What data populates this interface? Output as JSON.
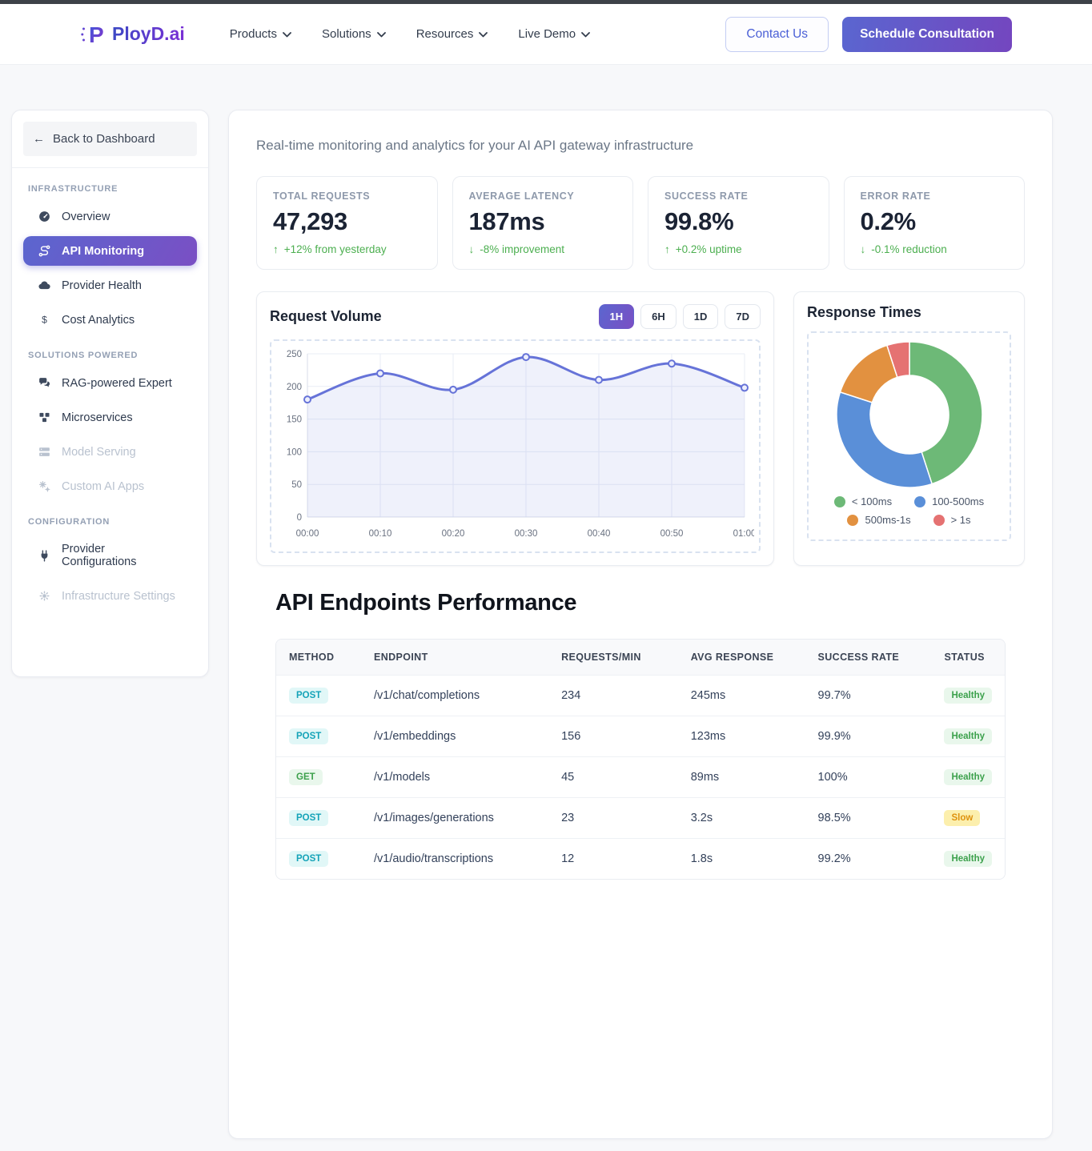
{
  "brand": {
    "name": "PloyD.ai"
  },
  "nav": {
    "items": [
      {
        "label": "Products"
      },
      {
        "label": "Solutions"
      },
      {
        "label": "Resources"
      },
      {
        "label": "Live Demo"
      }
    ]
  },
  "header": {
    "contact_label": "Contact Us",
    "schedule_label": "Schedule Consultation"
  },
  "sidebar": {
    "back_label": "Back to Dashboard",
    "sections": [
      {
        "label": "INFRASTRUCTURE",
        "items": [
          {
            "label": "Overview",
            "icon": "gauge-icon"
          },
          {
            "label": "API Monitoring",
            "icon": "route-icon",
            "active": true
          },
          {
            "label": "Provider Health",
            "icon": "cloud-icon"
          },
          {
            "label": "Cost Analytics",
            "icon": "dollar-icon"
          }
        ]
      },
      {
        "label": "SOLUTIONS POWERED",
        "items": [
          {
            "label": "RAG-powered Expert",
            "icon": "chat-icon"
          },
          {
            "label": "Microservices",
            "icon": "cubes-icon"
          },
          {
            "label": "Model Serving",
            "icon": "server-icon",
            "disabled": true
          },
          {
            "label": "Custom AI Apps",
            "icon": "gears-icon",
            "disabled": true
          }
        ]
      },
      {
        "label": "CONFIGURATION",
        "items": [
          {
            "label": "Provider Configurations",
            "icon": "plug-icon"
          },
          {
            "label": "Infrastructure Settings",
            "icon": "gear-icon",
            "disabled": true
          }
        ]
      }
    ]
  },
  "main": {
    "subtitle": "Real-time monitoring and analytics for your AI API gateway infrastructure",
    "stats": [
      {
        "label": "TOTAL REQUESTS",
        "value": "47,293",
        "delta": "+12% from yesterday",
        "direction": "up"
      },
      {
        "label": "AVERAGE LATENCY",
        "value": "187ms",
        "delta": "-8% improvement",
        "direction": "down"
      },
      {
        "label": "SUCCESS RATE",
        "value": "99.8%",
        "delta": "+0.2% uptime",
        "direction": "up"
      },
      {
        "label": "ERROR RATE",
        "value": "0.2%",
        "delta": "-0.1% reduction",
        "direction": "down"
      }
    ],
    "request_volume": {
      "title": "Request Volume",
      "ranges": [
        "1H",
        "6H",
        "1D",
        "7D"
      ],
      "active_range": "1H"
    },
    "response_times": {
      "title": "Response Times"
    },
    "endpoints": {
      "title": "API Endpoints Performance",
      "columns": [
        "METHOD",
        "ENDPOINT",
        "REQUESTS/MIN",
        "AVG RESPONSE",
        "SUCCESS RATE",
        "STATUS"
      ],
      "rows": [
        {
          "method": "POST",
          "endpoint": "/v1/chat/completions",
          "requests_per_min": "234",
          "avg_response": "245ms",
          "success_rate": "99.7%",
          "status": "Healthy"
        },
        {
          "method": "POST",
          "endpoint": "/v1/embeddings",
          "requests_per_min": "156",
          "avg_response": "123ms",
          "success_rate": "99.9%",
          "status": "Healthy"
        },
        {
          "method": "GET",
          "endpoint": "/v1/models",
          "requests_per_min": "45",
          "avg_response": "89ms",
          "success_rate": "100%",
          "status": "Healthy"
        },
        {
          "method": "POST",
          "endpoint": "/v1/images/generations",
          "requests_per_min": "23",
          "avg_response": "3.2s",
          "success_rate": "98.5%",
          "status": "Slow"
        },
        {
          "method": "POST",
          "endpoint": "/v1/audio/transcriptions",
          "requests_per_min": "12",
          "avg_response": "1.8s",
          "success_rate": "99.2%",
          "status": "Healthy"
        }
      ]
    }
  },
  "chart_data": [
    {
      "type": "line",
      "title": "Request Volume",
      "x": [
        "00:00",
        "00:10",
        "00:20",
        "00:30",
        "00:40",
        "00:50",
        "01:00"
      ],
      "series": [
        {
          "name": "Requests",
          "values": [
            180,
            220,
            195,
            245,
            210,
            235,
            198
          ]
        }
      ],
      "ylim": [
        0,
        250
      ],
      "ytick_step": 50,
      "grid": true,
      "smooth": true,
      "line_color": "#6673d8",
      "fill_color": "rgba(102,115,216,0.10)",
      "legend_position": "none"
    },
    {
      "type": "pie",
      "subtype": "donut",
      "title": "Response Times",
      "labels": [
        "< 100ms",
        "100-500ms",
        "500ms-1s",
        "> 1s"
      ],
      "values": [
        45,
        35,
        15,
        5
      ],
      "colors": [
        "#6db977",
        "#5a8fd8",
        "#e29140",
        "#e57272"
      ],
      "legend_position": "bottom"
    }
  ],
  "colors": {
    "accent_gradient_start": "#5b66cf",
    "accent_gradient_end": "#7a4fc4",
    "positive_green": "#4caf50",
    "top_strip": "#3d4248"
  }
}
